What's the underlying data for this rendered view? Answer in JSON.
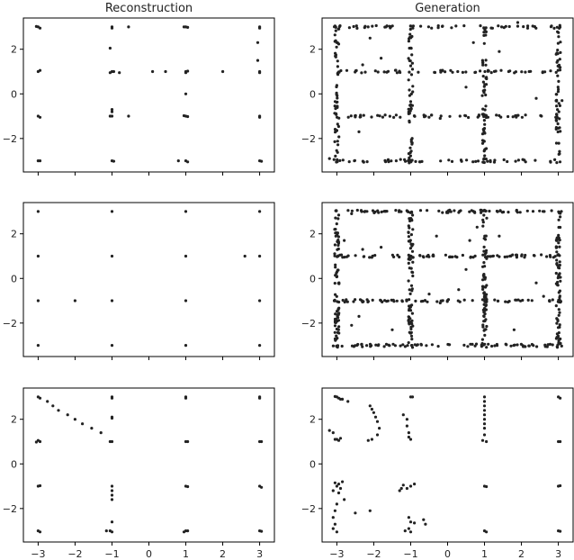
{
  "chart_data": [
    {
      "type": "scatter",
      "title": "Reconstruction",
      "xlim": [
        -3.4,
        3.4
      ],
      "ylim": [
        -3.5,
        3.4
      ],
      "xticks": [],
      "yticks": [
        "2",
        "0",
        "−2"
      ],
      "grid": false,
      "points": [
        [
          -3,
          3
        ],
        [
          -2.95,
          2.95
        ],
        [
          -3.05,
          3.02
        ],
        [
          -1,
          3
        ],
        [
          -1,
          2.95
        ],
        [
          -0.55,
          3
        ],
        [
          1,
          3
        ],
        [
          0.95,
          3
        ],
        [
          1.05,
          2.98
        ],
        [
          3,
          3
        ],
        [
          3,
          2.95
        ],
        [
          -3,
          1
        ],
        [
          -2.95,
          1.05
        ],
        [
          -1,
          1
        ],
        [
          -0.95,
          1
        ],
        [
          -1.05,
          0.95
        ],
        [
          -0.8,
          0.95
        ],
        [
          -1.05,
          2.05
        ],
        [
          0.1,
          1
        ],
        [
          0.45,
          1
        ],
        [
          1,
          1
        ],
        [
          1,
          0.95
        ],
        [
          1.05,
          1.02
        ],
        [
          2,
          1
        ],
        [
          3,
          1
        ],
        [
          3,
          0.95
        ],
        [
          2.95,
          2.3
        ],
        [
          2.95,
          1.5
        ],
        [
          1,
          0
        ],
        [
          -3,
          -1
        ],
        [
          -2.95,
          -1.05
        ],
        [
          -1,
          -1
        ],
        [
          -1.05,
          -1
        ],
        [
          -1,
          -0.8
        ],
        [
          -1,
          -0.7
        ],
        [
          -0.55,
          -1
        ],
        [
          1,
          -1
        ],
        [
          1.05,
          -1.02
        ],
        [
          0.95,
          -0.98
        ],
        [
          3,
          -1
        ],
        [
          3,
          -1.05
        ],
        [
          -3,
          -3
        ],
        [
          -2.95,
          -3
        ],
        [
          -1,
          -3
        ],
        [
          -0.95,
          -3.02
        ],
        [
          0.8,
          -3
        ],
        [
          1,
          -3
        ],
        [
          1.05,
          -3.05
        ],
        [
          3,
          -3
        ],
        [
          3.05,
          -3.02
        ]
      ]
    },
    {
      "type": "scatter",
      "title": "Generation",
      "xlim": [
        -3.4,
        3.4
      ],
      "ylim": [
        -3.5,
        3.4
      ],
      "xticks": [],
      "yticks": [
        "2",
        "0",
        "−2"
      ],
      "grid": false,
      "gen": "dense",
      "extra": [
        [
          1.9,
          3.2
        ],
        [
          -2.3,
          1.3
        ],
        [
          -1.8,
          1.6
        ],
        [
          0.5,
          0.3
        ],
        [
          2.4,
          -0.2
        ],
        [
          -2.4,
          -1.7
        ],
        [
          1.4,
          1.9
        ],
        [
          -0.2,
          -1.1
        ],
        [
          -3.2,
          -2.9
        ],
        [
          3.1,
          -0.3
        ],
        [
          -2.1,
          2.5
        ],
        [
          0.7,
          2.3
        ]
      ]
    },
    {
      "type": "scatter",
      "title": "",
      "xlim": [
        -3.4,
        3.4
      ],
      "ylim": [
        -3.5,
        3.4
      ],
      "xticks": [],
      "yticks": [
        "2",
        "0",
        "−2"
      ],
      "grid": false,
      "points": [
        [
          -3,
          3
        ],
        [
          -1,
          3
        ],
        [
          1,
          3
        ],
        [
          3,
          3
        ],
        [
          -3,
          1
        ],
        [
          -1,
          1
        ],
        [
          1,
          1
        ],
        [
          3,
          1
        ],
        [
          2.6,
          1
        ],
        [
          -3,
          -1
        ],
        [
          -2,
          -1
        ],
        [
          -1,
          -1
        ],
        [
          1,
          -1
        ],
        [
          3,
          -1
        ],
        [
          -3,
          -3
        ],
        [
          -1,
          -3
        ],
        [
          1,
          -3
        ],
        [
          3,
          -3
        ]
      ]
    },
    {
      "type": "scatter",
      "title": "",
      "xlim": [
        -3.4,
        3.4
      ],
      "ylim": [
        -3.5,
        3.4
      ],
      "xticks": [],
      "yticks": [
        "2",
        "0",
        "−2"
      ],
      "grid": false,
      "gen": "dense",
      "extra": [
        [
          -2.3,
          1.3
        ],
        [
          -1.8,
          1.4
        ],
        [
          0.5,
          0.4
        ],
        [
          2.4,
          -0.2
        ],
        [
          -2.4,
          -1.7
        ],
        [
          1.4,
          1.9
        ],
        [
          -0.2,
          -1.1
        ],
        [
          0.8,
          2.3
        ],
        [
          -2.6,
          2.9
        ],
        [
          -2.8,
          1.7
        ],
        [
          -0.5,
          -0.7
        ],
        [
          0.3,
          -0.5
        ],
        [
          1.8,
          -2.3
        ],
        [
          -1.5,
          -2.3
        ],
        [
          -2.6,
          -2.1
        ],
        [
          2.6,
          -0.8
        ],
        [
          -0.3,
          1.9
        ],
        [
          0.6,
          1.7
        ]
      ]
    },
    {
      "type": "scatter",
      "title": "",
      "xlim": [
        -3.4,
        3.4
      ],
      "ylim": [
        -3.5,
        3.4
      ],
      "xticks": [
        "−3",
        "−2",
        "−1",
        "0",
        "1",
        "2",
        "3"
      ],
      "yticks": [
        "2",
        "0",
        "−2"
      ],
      "grid": false,
      "points": [
        [
          -3,
          3
        ],
        [
          -2.95,
          2.95
        ],
        [
          -3,
          1.05
        ],
        [
          -2.95,
          1
        ],
        [
          -3.05,
          0.98
        ],
        [
          -3,
          -1
        ],
        [
          -2.95,
          -0.98
        ],
        [
          -3,
          -3
        ],
        [
          -2.95,
          -3.05
        ],
        [
          -2.75,
          2.8
        ],
        [
          -2.6,
          2.6
        ],
        [
          -2.45,
          2.4
        ],
        [
          -2.2,
          2.2
        ],
        [
          -2,
          2.0
        ],
        [
          -1.8,
          1.8
        ],
        [
          -1.55,
          1.6
        ],
        [
          -1.3,
          1.4
        ],
        [
          -1,
          3
        ],
        [
          -1,
          2.95
        ],
        [
          -1,
          2.1
        ],
        [
          -1,
          2.05
        ],
        [
          -1,
          1
        ],
        [
          -1.05,
          1
        ],
        [
          -1,
          -1
        ],
        [
          -1,
          -1.2
        ],
        [
          -1,
          -1.4
        ],
        [
          -1,
          -1.6
        ],
        [
          -1,
          -2.6
        ],
        [
          -1.05,
          -3
        ],
        [
          -1,
          -3.05
        ],
        [
          -1.15,
          -3
        ],
        [
          1,
          3
        ],
        [
          1,
          2.95
        ],
        [
          1,
          1
        ],
        [
          1.05,
          1
        ],
        [
          1,
          -1
        ],
        [
          1.05,
          -1.02
        ],
        [
          1,
          -3
        ],
        [
          1.05,
          -3
        ],
        [
          0.95,
          -3.05
        ],
        [
          3,
          3
        ],
        [
          3,
          2.95
        ],
        [
          3,
          1
        ],
        [
          3.05,
          1
        ],
        [
          3,
          -1
        ],
        [
          3.05,
          -1.05
        ],
        [
          3,
          -3
        ],
        [
          3.05,
          -3.02
        ]
      ]
    },
    {
      "type": "scatter",
      "title": "",
      "xlim": [
        -3.4,
        3.4
      ],
      "ylim": [
        -3.5,
        3.4
      ],
      "xticks": [
        "−3",
        "−2",
        "−1",
        "0",
        "1",
        "2",
        "3"
      ],
      "yticks": [
        "2",
        "0",
        "−2"
      ],
      "grid": false,
      "points": [
        [
          -3,
          3
        ],
        [
          -2.95,
          2.95
        ],
        [
          -2.9,
          2.9
        ],
        [
          -3.05,
          3.02
        ],
        [
          -2.85,
          2.9
        ],
        [
          -2.7,
          2.8
        ],
        [
          -1,
          3
        ],
        [
          -0.95,
          3
        ],
        [
          1,
          3
        ],
        [
          1,
          2.8
        ],
        [
          1,
          2.6
        ],
        [
          1,
          2.4
        ],
        [
          1,
          2.2
        ],
        [
          1,
          2.0
        ],
        [
          1,
          1.8
        ],
        [
          1,
          1.6
        ],
        [
          1,
          1.3
        ],
        [
          1.05,
          1
        ],
        [
          0.95,
          1.05
        ],
        [
          3,
          3
        ],
        [
          3.05,
          2.95
        ],
        [
          3,
          1
        ],
        [
          3.05,
          1
        ],
        [
          -2.1,
          2.6
        ],
        [
          -2.05,
          2.45
        ],
        [
          -2.0,
          2.3
        ],
        [
          -1.95,
          2.1
        ],
        [
          -1.9,
          1.9
        ],
        [
          -1.85,
          1.6
        ],
        [
          -1.9,
          1.3
        ],
        [
          -2.05,
          1.1
        ],
        [
          -2.15,
          1.05
        ],
        [
          -1.2,
          2.2
        ],
        [
          -1.1,
          2.0
        ],
        [
          -1.1,
          1.7
        ],
        [
          -1.05,
          1.4
        ],
        [
          -1,
          1.1
        ],
        [
          -1.05,
          1.2
        ],
        [
          -3.2,
          1.5
        ],
        [
          -3.1,
          1.4
        ],
        [
          -3.05,
          1.1
        ],
        [
          -2.95,
          1.05
        ],
        [
          -3,
          1.1
        ],
        [
          -2.9,
          1.15
        ],
        [
          -3,
          -1
        ],
        [
          -2.95,
          -0.9
        ],
        [
          -3.05,
          -0.85
        ],
        [
          -2.9,
          -1.1
        ],
        [
          -3.1,
          -1.2
        ],
        [
          -2.85,
          -0.8
        ],
        [
          -2.95,
          -1.3
        ],
        [
          -2.8,
          -1.6
        ],
        [
          -3.0,
          -1.8
        ],
        [
          -3.05,
          -2.1
        ],
        [
          -3.1,
          -2.4
        ],
        [
          -3.05,
          -2.7
        ],
        [
          -3.1,
          -2.9
        ],
        [
          -3.0,
          -3.05
        ],
        [
          -2.1,
          -2.1
        ],
        [
          -2.5,
          -2.2
        ],
        [
          -1.3,
          -1.2
        ],
        [
          -1.25,
          -1.1
        ],
        [
          -1.2,
          -0.95
        ],
        [
          -1.0,
          -1.0
        ],
        [
          -0.9,
          -0.9
        ],
        [
          -1.1,
          -1.1
        ],
        [
          -1.05,
          -2.4
        ],
        [
          -1.0,
          -2.6
        ],
        [
          -1.05,
          -2.9
        ],
        [
          -0.9,
          -2.65
        ],
        [
          -0.65,
          -2.5
        ],
        [
          -0.6,
          -2.7
        ],
        [
          -1.15,
          -3.0
        ],
        [
          -1.0,
          -3.05
        ],
        [
          1,
          -1
        ],
        [
          1.05,
          -1.02
        ],
        [
          1,
          -3
        ],
        [
          1.05,
          -3.05
        ],
        [
          3,
          -1
        ],
        [
          3.05,
          -0.98
        ],
        [
          3,
          -3
        ],
        [
          3.05,
          -3.02
        ]
      ]
    }
  ]
}
